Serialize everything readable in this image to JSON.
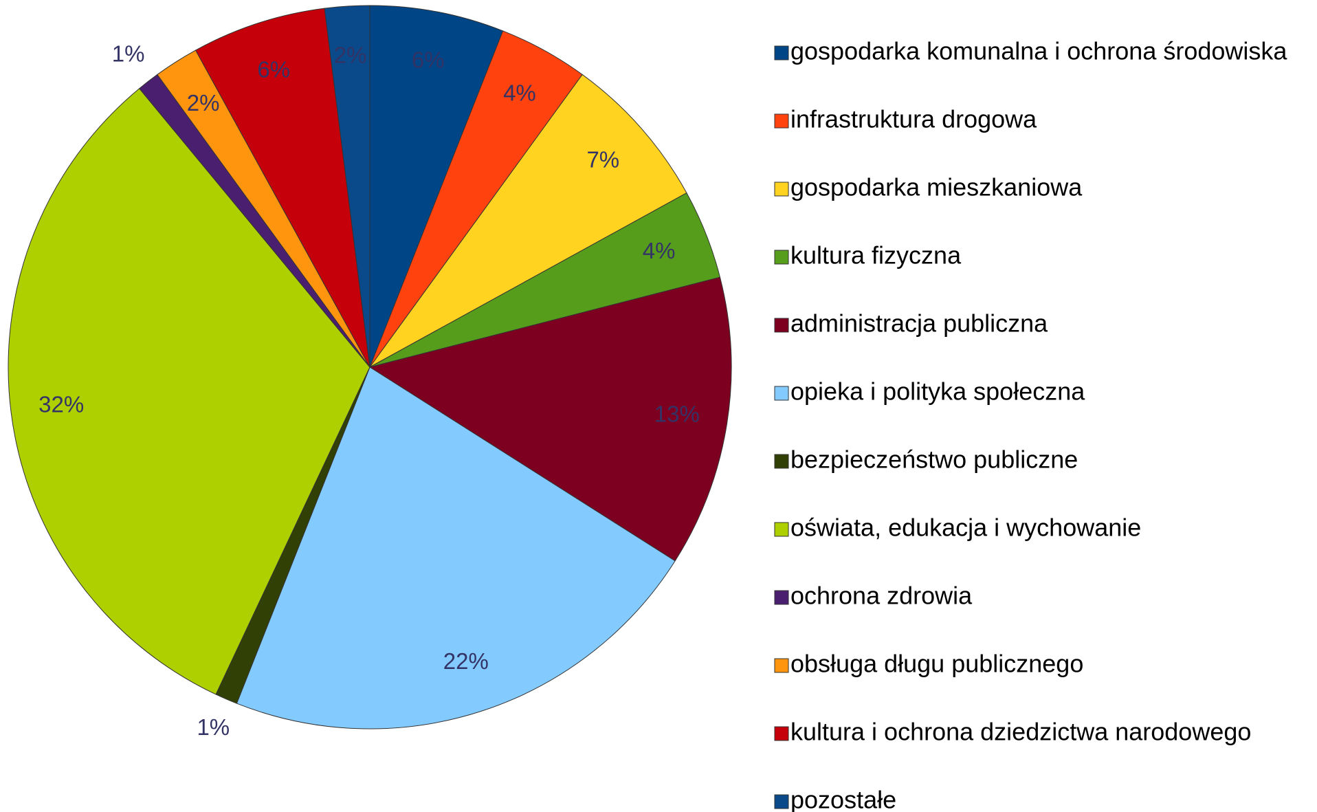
{
  "chart_data": {
    "type": "pie",
    "categories": [
      "gospodarka komunalna i ochrona środowiska",
      "infrastruktura drogowa",
      "gospodarka mieszkaniowa",
      "kultura fizyczna",
      "administracja publiczna",
      "opieka i polityka społeczna",
      "bezpieczeństwo publiczne",
      "oświata, edukacja i wychowanie",
      "ochrona zdrowia",
      "obsługa długu publicznego",
      "kultura i ochrona dziedzictwa narodowego",
      "pozostałe"
    ],
    "values": [
      6,
      4,
      7,
      4,
      13,
      22,
      1,
      32,
      1,
      2,
      6,
      2
    ],
    "value_labels": [
      "6%",
      "4%",
      "7%",
      "4%",
      "13%",
      "22%",
      "1%",
      "32%",
      "1%",
      "2%",
      "6%",
      "2%"
    ],
    "colors": [
      "#004586",
      "#ff420e",
      "#ffd320",
      "#579d1c",
      "#7e0021",
      "#83caff",
      "#314004",
      "#aecf00",
      "#4b1f6f",
      "#ff950e",
      "#c5000b",
      "#0a4a8a"
    ],
    "legend": "right"
  }
}
